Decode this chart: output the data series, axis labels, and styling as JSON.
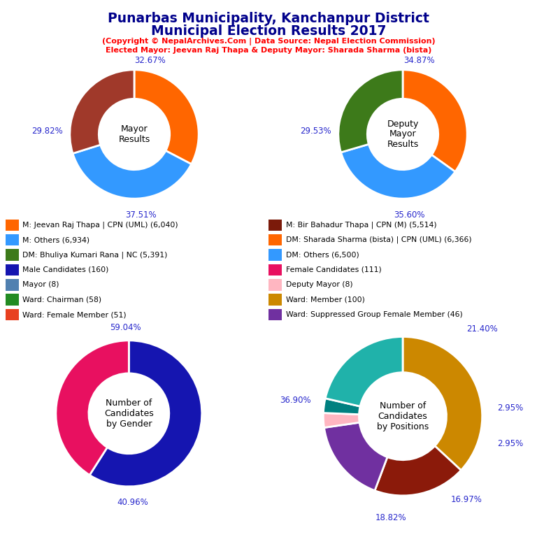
{
  "title_line1": "Punarbas Municipality, Kanchanpur District",
  "title_line2": "Municipal Election Results 2017",
  "subtitle1": "(Copyright © NepalArchives.Com | Data Source: Nepal Election Commission)",
  "subtitle2": "Elected Mayor: Jeevan Raj Thapa & Deputy Mayor: Sharada Sharma (bista)",
  "title_color": "#00008B",
  "subtitle_color": "#FF0000",
  "label_color": "#2828CC",
  "mayor": {
    "values": [
      32.67,
      37.51,
      29.82
    ],
    "colors": [
      "#FF6600",
      "#3399FF",
      "#A0392A"
    ],
    "center_text": "Mayor\nResults",
    "startangle": 90
  },
  "deputy": {
    "values": [
      34.87,
      35.6,
      29.53
    ],
    "colors": [
      "#FF6600",
      "#3399FF",
      "#3D7A1A"
    ],
    "center_text": "Deputy\nMayor\nResults",
    "startangle": 90
  },
  "gender": {
    "values": [
      59.04,
      40.96
    ],
    "colors": [
      "#1515B0",
      "#E81060"
    ],
    "center_text": "Number of\nCandidates\nby Gender",
    "startangle": 90
  },
  "positions": {
    "values": [
      36.9,
      18.82,
      16.97,
      2.95,
      2.95,
      21.4
    ],
    "colors": [
      "#CC8800",
      "#8B1A0A",
      "#7030A0",
      "#FFB6C1",
      "#008080",
      "#20B2AA"
    ],
    "center_text": "Number of\nCandidates\nby Positions",
    "startangle": 90
  },
  "legend_items_left": [
    {
      "label": "M: Jeevan Raj Thapa | CPN (UML) (6,040)",
      "color": "#FF6600"
    },
    {
      "label": "M: Others (6,934)",
      "color": "#3399FF"
    },
    {
      "label": "DM: Bhuliya Kumari Rana | NC (5,391)",
      "color": "#3D7A1A"
    },
    {
      "label": "Male Candidates (160)",
      "color": "#1515B0"
    },
    {
      "label": "Mayor (8)",
      "color": "#5080B0"
    },
    {
      "label": "Ward: Chairman (58)",
      "color": "#228B22"
    },
    {
      "label": "Ward: Female Member (51)",
      "color": "#E84020"
    }
  ],
  "legend_items_right": [
    {
      "label": "M: Bir Bahadur Thapa | CPN (M) (5,514)",
      "color": "#7B1A0A"
    },
    {
      "label": "DM: Sharada Sharma (bista) | CPN (UML) (6,366)",
      "color": "#FF6600"
    },
    {
      "label": "DM: Others (6,500)",
      "color": "#3399FF"
    },
    {
      "label": "Female Candidates (111)",
      "color": "#E81060"
    },
    {
      "label": "Deputy Mayor (8)",
      "color": "#FFB6C1"
    },
    {
      "label": "Ward: Member (100)",
      "color": "#CC8800"
    },
    {
      "label": "Ward: Suppressed Group Female Member (46)",
      "color": "#7030A0"
    }
  ]
}
